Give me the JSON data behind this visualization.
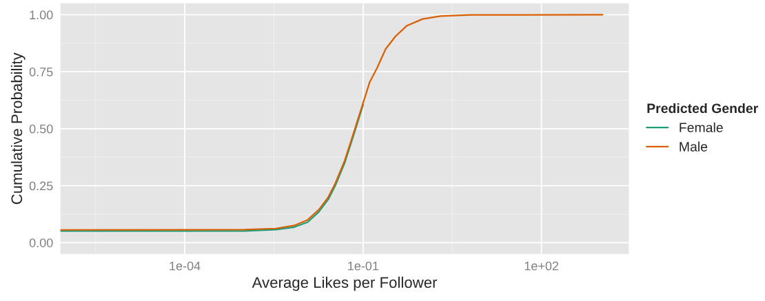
{
  "chart_data": {
    "type": "line",
    "xlabel": "Average Likes per Follower",
    "ylabel": "Cumulative Probability",
    "legend_title": "Predicted Gender",
    "legend": "right",
    "grid": true,
    "log": "x",
    "xlim": [
      8.1e-07,
      2950
    ],
    "ylim": [
      -0.05,
      1.05
    ],
    "xticks": [
      {
        "value": 3.16e-06,
        "label": null
      },
      {
        "value": 0.0001,
        "label": "1e-04"
      },
      {
        "value": 0.00316,
        "label": null
      },
      {
        "value": 0.1,
        "label": "1e-01"
      },
      {
        "value": 3.16,
        "label": null
      },
      {
        "value": 100,
        "label": "1e+02"
      }
    ],
    "yticks": [
      {
        "value": 0,
        "label": "0.00"
      },
      {
        "value": 0.125,
        "label": null
      },
      {
        "value": 0.25,
        "label": "0.25"
      },
      {
        "value": 0.375,
        "label": null
      },
      {
        "value": 0.5,
        "label": "0.50"
      },
      {
        "value": 0.625,
        "label": null
      },
      {
        "value": 0.75,
        "label": "0.75"
      },
      {
        "value": 0.875,
        "label": null
      },
      {
        "value": 1,
        "label": "1.00"
      }
    ],
    "series": [
      {
        "name": "Female",
        "color": "#1b9e77",
        "x": [
          8.1e-07,
          0.001,
          0.0034,
          0.0069,
          0.0117,
          0.018,
          0.026,
          0.034,
          0.049,
          0.069,
          0.1
        ],
        "values": [
          0.051,
          0.051,
          0.057,
          0.068,
          0.09,
          0.135,
          0.19,
          0.25,
          0.35,
          0.47,
          0.605
        ]
      },
      {
        "name": "Male",
        "color": "#d95f02",
        "x": [
          8.1e-07,
          0.001,
          0.0034,
          0.0069,
          0.0117,
          0.018,
          0.026,
          0.034,
          0.049,
          0.069,
          0.1,
          0.129,
          0.17,
          0.24,
          0.35,
          0.54,
          1.0,
          2.0,
          6.5,
          1070
        ],
        "values": [
          0.056,
          0.057,
          0.062,
          0.075,
          0.1,
          0.145,
          0.2,
          0.26,
          0.36,
          0.48,
          0.613,
          0.704,
          0.764,
          0.85,
          0.905,
          0.951,
          0.981,
          0.994,
          0.999,
          1.0
        ]
      }
    ]
  }
}
